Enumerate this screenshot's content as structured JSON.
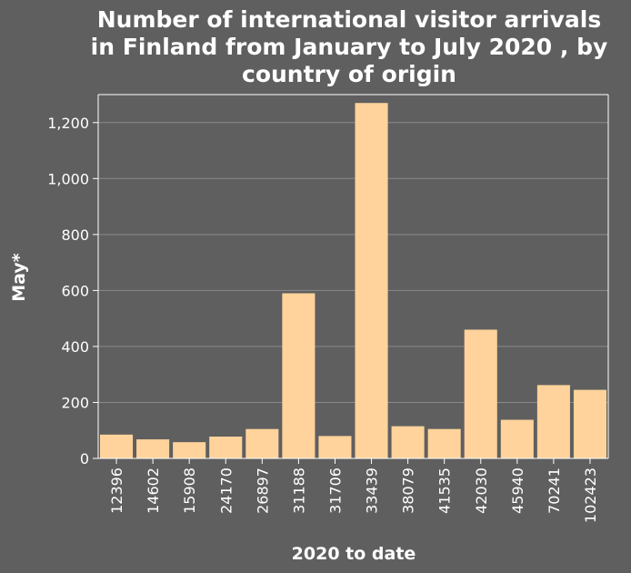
{
  "chart_data": {
    "type": "bar",
    "title": "Number of international visitor arrivals in Finland from January to July 2020 , by country of origin",
    "title_lines": [
      "Number of international visitor arrivals",
      "in Finland from January to July 2020 , by",
      "country of origin"
    ],
    "xlabel": "2020 to date",
    "ylabel": "May*",
    "categories": [
      "12396",
      "14602",
      "15908",
      "24170",
      "26897",
      "31188",
      "31706",
      "33439",
      "38079",
      "41535",
      "42030",
      "45940",
      "70241",
      "102423"
    ],
    "values": [
      85,
      68,
      58,
      78,
      105,
      590,
      80,
      1270,
      115,
      105,
      460,
      138,
      262,
      245
    ],
    "ylim": [
      0,
      1300
    ],
    "yticks": [
      0,
      200,
      400,
      600,
      800,
      1000,
      1200
    ],
    "ytick_labels": [
      "0",
      "200",
      "400",
      "600",
      "800",
      "1,000",
      "1,200"
    ],
    "grid": "horizontal",
    "bar_color": "#ffd39b",
    "background_color": "#5f5f5f",
    "grid_color": "#8a8a8a"
  }
}
